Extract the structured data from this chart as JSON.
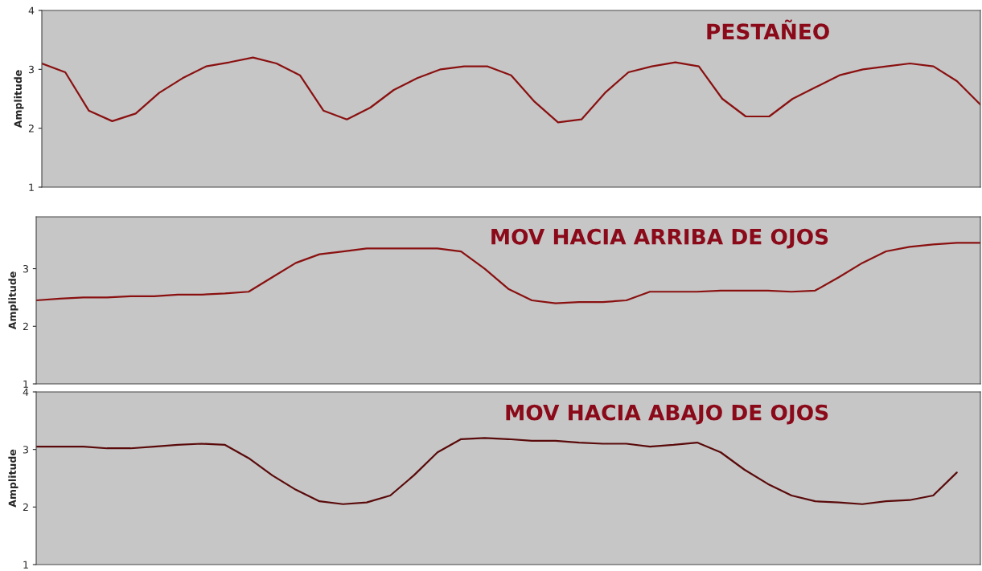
{
  "chart_data": [
    {
      "type": "line",
      "title": "PESTAÑEO",
      "ylabel": "Amplitude",
      "categories": [
        null,
        null,
        null,
        null,
        null,
        null,
        null,
        null,
        null,
        null,
        null,
        null,
        null,
        null,
        null,
        null,
        null,
        null,
        null,
        null,
        null,
        null,
        null,
        null,
        null,
        null,
        null,
        null,
        null,
        null,
        null,
        null,
        null,
        null,
        null,
        null,
        null,
        null,
        null,
        null,
        null
      ],
      "series": [
        {
          "color": "#8a1010",
          "values": [
            3.1,
            2.95,
            2.3,
            2.12,
            2.25,
            2.6,
            2.85,
            3.05,
            3.12,
            3.2,
            3.1,
            2.9,
            2.3,
            2.15,
            2.35,
            2.65,
            2.85,
            3.0,
            3.05,
            3.05,
            2.9,
            2.45,
            2.1,
            2.15,
            2.6,
            2.95,
            3.05,
            3.12,
            3.05,
            2.5,
            2.2,
            2.2,
            2.5,
            2.7,
            2.9,
            3.0,
            3.05,
            3.1,
            3.05,
            2.8,
            2.4
          ]
        }
      ],
      "ylim": [
        1,
        4
      ],
      "yticks": [
        1,
        2,
        3,
        4
      ],
      "tick_labels": "y",
      "grid": false,
      "legend": false
    },
    {
      "type": "line",
      "title": "MOV HACIA ARRIBA DE OJOS",
      "ylabel": "Amplitude",
      "categories": [
        null,
        null,
        null,
        null,
        null,
        null,
        null,
        null,
        null,
        null,
        null,
        null,
        null,
        null,
        null,
        null,
        null,
        null,
        null,
        null,
        null,
        null,
        null,
        null,
        null,
        null,
        null,
        null,
        null,
        null,
        null,
        null,
        null,
        null,
        null,
        null,
        null,
        null,
        null,
        null,
        null
      ],
      "series": [
        {
          "color": "#8a1010",
          "values": [
            2.45,
            2.48,
            2.5,
            2.5,
            2.52,
            2.52,
            2.55,
            2.55,
            2.57,
            2.6,
            2.85,
            3.1,
            3.25,
            3.3,
            3.35,
            3.35,
            3.35,
            3.35,
            3.3,
            3.0,
            2.65,
            2.45,
            2.4,
            2.42,
            2.42,
            2.45,
            2.6,
            2.6,
            2.6,
            2.62,
            2.62,
            2.62,
            2.6,
            2.62,
            2.85,
            3.1,
            3.3,
            3.38,
            3.42,
            3.45,
            3.45
          ]
        }
      ],
      "ylim": [
        1,
        3.9
      ],
      "yticks": [
        1,
        2,
        3
      ],
      "tick_labels": "y",
      "grid": false,
      "legend": false
    },
    {
      "type": "line",
      "title": "MOV HACIA ABAJO DE OJOS",
      "ylabel": "Amplitude",
      "categories": [
        null,
        null,
        null,
        null,
        null,
        null,
        null,
        null,
        null,
        null,
        null,
        null,
        null,
        null,
        null,
        null,
        null,
        null,
        null,
        null,
        null,
        null,
        null,
        null,
        null,
        null,
        null,
        null,
        null,
        null,
        null,
        null,
        null,
        null,
        null,
        null,
        null,
        null,
        null,
        null,
        null
      ],
      "series": [
        {
          "color": "#5a0a0a",
          "values": [
            3.05,
            3.05,
            3.05,
            3.02,
            3.02,
            3.05,
            3.08,
            3.1,
            3.08,
            2.85,
            2.55,
            2.3,
            2.1,
            2.05,
            2.08,
            2.2,
            2.55,
            2.95,
            3.18,
            3.2,
            3.18,
            3.15,
            3.15,
            3.12,
            3.1,
            3.1,
            3.05,
            3.08,
            3.12,
            2.95,
            2.65,
            2.4,
            2.2,
            2.1,
            2.08,
            2.05,
            2.1,
            2.12,
            2.2,
            2.6,
            null
          ]
        }
      ],
      "ylim": [
        1,
        4
      ],
      "yticks": [
        1,
        2,
        3,
        4
      ],
      "tick_labels": "y",
      "grid": false,
      "legend": false
    }
  ]
}
